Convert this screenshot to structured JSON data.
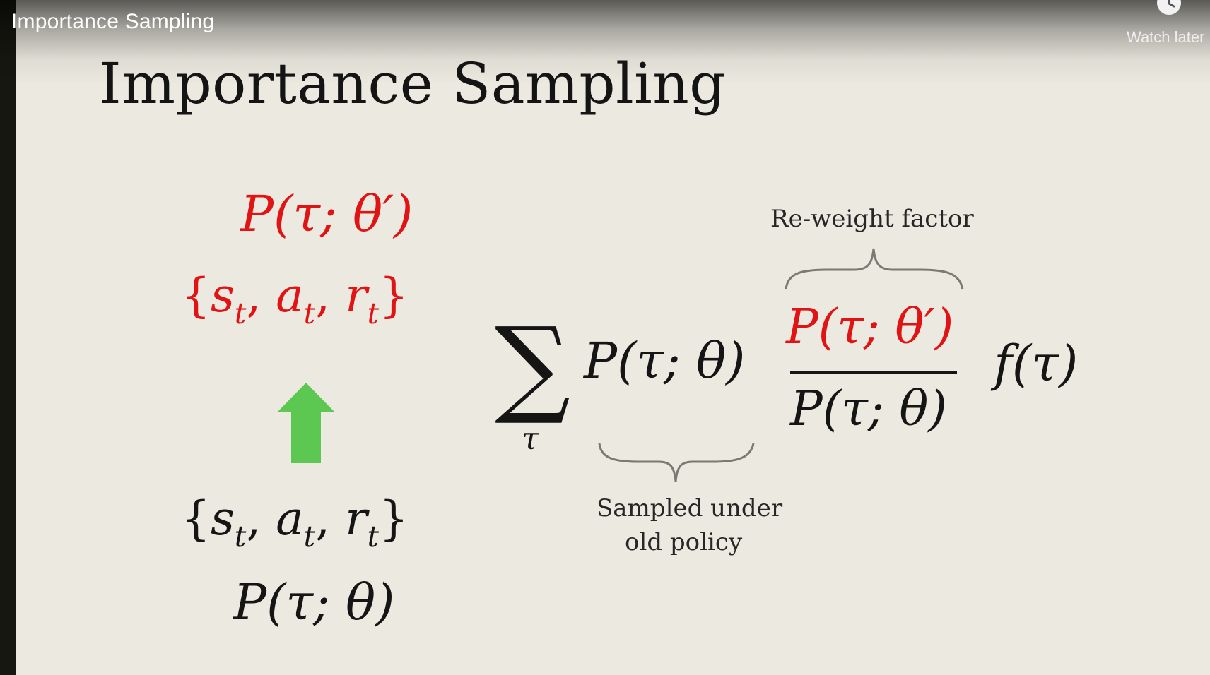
{
  "player": {
    "video_title": "Importance Sampling",
    "watch_later_label": "Watch later",
    "watch_later_icon": "clock-icon"
  },
  "slide": {
    "title": "Importance Sampling",
    "left_column": {
      "new_policy_prob": "P(τ; θ′)",
      "new_trajectory": {
        "open": "{",
        "s": "s",
        "a": "a",
        "r": "r",
        "sub": "t",
        "sep": ", ",
        "close": "}"
      },
      "arrow_icon": "arrow-up-icon",
      "old_trajectory": {
        "open": "{",
        "s": "s",
        "a": "a",
        "r": "r",
        "sub": "t",
        "sep": ", ",
        "close": "}"
      },
      "old_policy_prob": "P(τ; θ)"
    },
    "equation": {
      "sum_symbol": "∑",
      "sum_index": "τ",
      "first_term": "P(τ; θ)",
      "numerator": "P(τ; θ′)",
      "denominator": "P(τ; θ)",
      "last_term": "f(τ)"
    },
    "annotations": {
      "reweight_label": "Re-weight factor",
      "sampled_label_line1": "Sampled under",
      "sampled_label_line2": "old policy"
    },
    "colors": {
      "red": "#e01414",
      "black": "#151515",
      "arrow_green": "#5dc851",
      "background": "#ece9e0",
      "brace_gray": "#7a7a72"
    }
  }
}
